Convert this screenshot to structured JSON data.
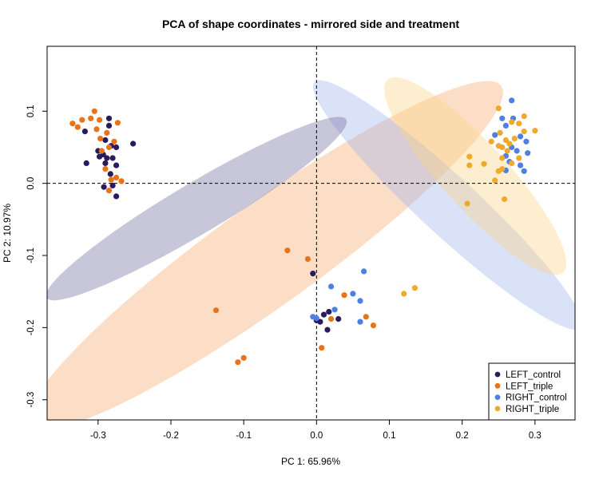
{
  "chart_data": {
    "type": "scatter",
    "title": "PCA of shape coordinates - mirrored side and treatment",
    "xlabel": "PC 1: 65.96%",
    "ylabel": "PC 2: 10.97%",
    "xlim": [
      -0.37,
      0.355
    ],
    "ylim": [
      -0.328,
      0.19
    ],
    "x_ticks": [
      -0.3,
      -0.2,
      -0.1,
      0.0,
      0.1,
      0.2,
      0.3
    ],
    "x_tick_labels": [
      "-0.3",
      "-0.2",
      "-0.1",
      "0.0",
      "0.1",
      "0.2",
      "0.3"
    ],
    "y_ticks": [
      -0.3,
      -0.2,
      -0.1,
      0.0,
      0.1
    ],
    "y_tick_labels": [
      "-0.3",
      "-0.2",
      "-0.1",
      "0.0",
      "0.1"
    ],
    "reference_lines": {
      "x": 0,
      "y": 0,
      "style": "dashed"
    },
    "legend_position": "bottom-right",
    "ellipses": [
      {
        "series": "LEFT_triple",
        "center": [
          -0.07,
          -0.1
        ],
        "semi_major": 0.4,
        "semi_minor": 0.07,
        "angle_deg": 36,
        "color": "#F6A96D",
        "opacity": 0.38
      },
      {
        "series": "RIGHT_control",
        "center": [
          0.18,
          -0.03
        ],
        "semi_major": 0.25,
        "semi_minor": 0.04,
        "angle_deg": -43,
        "color": "#9DB4EA",
        "opacity": 0.38
      },
      {
        "series": "RIGHT_triple",
        "center": [
          0.218,
          0.01
        ],
        "semi_major": 0.18,
        "semi_minor": 0.045,
        "angle_deg": -48,
        "color": "#FBD58A",
        "opacity": 0.4
      },
      {
        "series": "LEFT_control",
        "center": [
          -0.165,
          -0.035
        ],
        "semi_major": 0.24,
        "semi_minor": 0.035,
        "angle_deg": 31,
        "color": "#6F6A9C",
        "opacity": 0.38
      }
    ],
    "series": [
      {
        "name": "LEFT_control",
        "color": "#2A1B5E",
        "points": [
          [
            -0.285,
            0.08
          ],
          [
            -0.318,
            0.072
          ],
          [
            -0.29,
            0.06
          ],
          [
            -0.282,
            0.052
          ],
          [
            -0.275,
            0.05
          ],
          [
            -0.252,
            0.055
          ],
          [
            -0.3,
            0.045
          ],
          [
            -0.293,
            0.04
          ],
          [
            -0.288,
            0.035
          ],
          [
            -0.298,
            0.037
          ],
          [
            -0.28,
            0.035
          ],
          [
            -0.316,
            0.028
          ],
          [
            -0.29,
            0.028
          ],
          [
            -0.275,
            0.025
          ],
          [
            -0.283,
            0.013
          ],
          [
            -0.28,
            -0.003
          ],
          [
            -0.292,
            -0.005
          ],
          [
            -0.275,
            -0.018
          ],
          [
            -0.285,
            0.09
          ],
          [
            -0.005,
            -0.125
          ],
          [
            0.017,
            -0.178
          ],
          [
            0.01,
            -0.182
          ],
          [
            0.005,
            -0.192
          ],
          [
            0.0,
            -0.19
          ],
          [
            0.015,
            -0.203
          ],
          [
            0.03,
            -0.188
          ]
        ]
      },
      {
        "name": "LEFT_triple",
        "color": "#E8731A",
        "points": [
          [
            -0.305,
            0.1
          ],
          [
            -0.31,
            0.09
          ],
          [
            -0.298,
            0.088
          ],
          [
            -0.322,
            0.088
          ],
          [
            -0.335,
            0.083
          ],
          [
            -0.328,
            0.078
          ],
          [
            -0.273,
            0.084
          ],
          [
            -0.302,
            0.075
          ],
          [
            -0.288,
            0.07
          ],
          [
            -0.297,
            0.062
          ],
          [
            -0.278,
            0.058
          ],
          [
            -0.285,
            0.05
          ],
          [
            -0.295,
            0.045
          ],
          [
            -0.29,
            0.02
          ],
          [
            -0.275,
            0.008
          ],
          [
            -0.268,
            0.003
          ],
          [
            -0.282,
            0.005
          ],
          [
            -0.285,
            -0.01
          ],
          [
            -0.04,
            -0.093
          ],
          [
            -0.012,
            -0.105
          ],
          [
            -0.138,
            -0.176
          ],
          [
            -0.1,
            -0.242
          ],
          [
            -0.108,
            -0.248
          ],
          [
            0.038,
            -0.155
          ],
          [
            0.068,
            -0.185
          ],
          [
            0.078,
            -0.197
          ],
          [
            0.02,
            -0.188
          ],
          [
            0.007,
            -0.228
          ]
        ]
      },
      {
        "name": "RIGHT_control",
        "color": "#4E7FE3",
        "points": [
          [
            0.065,
            -0.122
          ],
          [
            0.05,
            -0.153
          ],
          [
            0.06,
            -0.163
          ],
          [
            0.02,
            -0.143
          ],
          [
            0.025,
            -0.175
          ],
          [
            0.06,
            -0.192
          ],
          [
            -0.005,
            -0.185
          ],
          [
            0.0,
            -0.187
          ],
          [
            0.268,
            0.115
          ],
          [
            0.255,
            0.09
          ],
          [
            0.27,
            0.09
          ],
          [
            0.26,
            0.08
          ],
          [
            0.245,
            0.067
          ],
          [
            0.28,
            0.065
          ],
          [
            0.288,
            0.058
          ],
          [
            0.268,
            0.05
          ],
          [
            0.275,
            0.045
          ],
          [
            0.29,
            0.042
          ],
          [
            0.26,
            0.038
          ],
          [
            0.265,
            0.03
          ],
          [
            0.28,
            0.025
          ],
          [
            0.26,
            0.018
          ],
          [
            0.285,
            0.017
          ]
        ]
      },
      {
        "name": "RIGHT_triple",
        "color": "#F0A92B",
        "points": [
          [
            0.25,
            0.104
          ],
          [
            0.285,
            0.093
          ],
          [
            0.268,
            0.085
          ],
          [
            0.278,
            0.083
          ],
          [
            0.252,
            0.07
          ],
          [
            0.26,
            0.06
          ],
          [
            0.255,
            0.05
          ],
          [
            0.285,
            0.072
          ],
          [
            0.3,
            0.073
          ],
          [
            0.272,
            0.062
          ],
          [
            0.265,
            0.055
          ],
          [
            0.262,
            0.045
          ],
          [
            0.25,
            0.052
          ],
          [
            0.24,
            0.058
          ],
          [
            0.278,
            0.035
          ],
          [
            0.255,
            0.035
          ],
          [
            0.21,
            0.037
          ],
          [
            0.23,
            0.027
          ],
          [
            0.21,
            0.025
          ],
          [
            0.268,
            0.028
          ],
          [
            0.255,
            0.02
          ],
          [
            0.25,
            0.017
          ],
          [
            0.245,
            0.004
          ],
          [
            0.258,
            -0.022
          ],
          [
            0.207,
            -0.028
          ],
          [
            0.135,
            -0.145
          ],
          [
            0.12,
            -0.153
          ]
        ]
      }
    ]
  }
}
